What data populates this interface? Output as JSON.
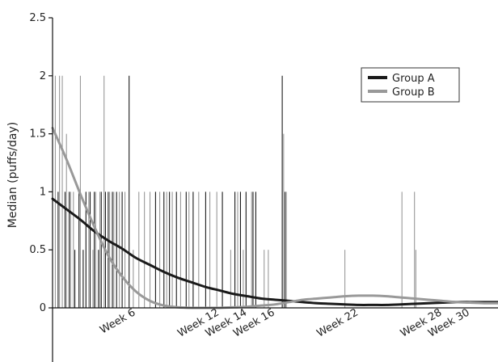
{
  "chart_data": {
    "type": "line",
    "title": "",
    "xlabel": "",
    "ylabel": "Median (puffs/day)",
    "xlim": [
      0,
      32
    ],
    "ylim": [
      0,
      2.5
    ],
    "y_ticks": [
      0,
      0.5,
      1,
      1.5,
      2,
      2.5
    ],
    "y_tick_labels": [
      "0",
      "0.5",
      "1",
      "1.5",
      "2",
      "2.5"
    ],
    "x_ticks": [
      {
        "value": 6,
        "label": "Week 6"
      },
      {
        "value": 12,
        "label": "Week 12"
      },
      {
        "value": 14,
        "label": "Week 14"
      },
      {
        "value": 16,
        "label": "Week 16"
      },
      {
        "value": 22,
        "label": "Week 22"
      },
      {
        "value": 28,
        "label": "Week 28"
      },
      {
        "value": 30,
        "label": "Week 30"
      }
    ],
    "x_tick_rotation_deg": -30,
    "grid": false,
    "legend_position": "top-right",
    "colors": {
      "Group A": "#1a1a1a",
      "Group B": "#999999"
    },
    "series": [
      {
        "name": "Group A",
        "kind": "spikes",
        "x": [
          0.4,
          0.9,
          1.2,
          1.6,
          1.9,
          2.2,
          2.4,
          2.7,
          3.0,
          3.3,
          3.5,
          3.8,
          4.0,
          4.3,
          4.6,
          5.0,
          5.5,
          7.4,
          8.0,
          8.4,
          8.9,
          9.6,
          10.1,
          11.0,
          12.2,
          13.1,
          13.5,
          13.9,
          14.4,
          14.6,
          16.5,
          16.7
        ],
        "y": [
          1,
          1,
          1,
          0.5,
          1,
          0.5,
          1,
          1,
          1,
          0.5,
          1,
          1,
          1,
          1,
          1,
          1,
          2,
          1,
          1,
          1,
          1,
          1,
          1,
          1,
          1,
          1,
          1,
          1,
          1,
          1,
          2,
          1
        ]
      },
      {
        "name": "Group B",
        "kind": "spikes",
        "x": [
          0.2,
          0.5,
          0.7,
          1.0,
          1.3,
          1.5,
          2.0,
          2.6,
          2.9,
          3.1,
          3.4,
          3.7,
          4.1,
          4.4,
          4.8,
          5.2,
          5.8,
          6.2,
          6.6,
          7.0,
          7.7,
          8.2,
          8.6,
          9.2,
          9.8,
          10.5,
          11.3,
          11.8,
          12.8,
          13.3,
          13.7,
          14.3,
          15.2,
          15.5,
          16.6,
          16.8,
          21.0,
          25.1,
          26.0,
          26.1
        ],
        "y": [
          2,
          2,
          2,
          1.5,
          1,
          1,
          2,
          1,
          0.5,
          1,
          1,
          2,
          1,
          1,
          1,
          1,
          0.5,
          1,
          1,
          1,
          1,
          1,
          1,
          1,
          1,
          1,
          1,
          1,
          0.5,
          1,
          0.5,
          1,
          0.5,
          0.5,
          1.5,
          1,
          0.5,
          1,
          1,
          0.5
        ]
      },
      {
        "name": "Group A",
        "kind": "smooth",
        "x": [
          0,
          1,
          2,
          3,
          4,
          5,
          6,
          7,
          8,
          9,
          10,
          11,
          12,
          13,
          14,
          15,
          16,
          17,
          18,
          19,
          20,
          21,
          22,
          23,
          24,
          25,
          26,
          27,
          28,
          29,
          30,
          31,
          32
        ],
        "y": [
          0.94,
          0.85,
          0.76,
          0.66,
          0.58,
          0.51,
          0.43,
          0.37,
          0.31,
          0.26,
          0.22,
          0.18,
          0.15,
          0.12,
          0.1,
          0.08,
          0.07,
          0.06,
          0.05,
          0.04,
          0.035,
          0.03,
          0.025,
          0.025,
          0.025,
          0.03,
          0.035,
          0.04,
          0.045,
          0.05,
          0.05,
          0.05,
          0.05
        ]
      },
      {
        "name": "Group B",
        "kind": "smooth",
        "x": [
          0,
          1,
          2,
          3,
          4,
          5,
          6,
          7,
          8,
          9,
          10,
          11,
          12,
          13,
          14,
          15,
          16,
          17,
          18,
          19,
          20,
          21,
          22,
          23,
          24,
          25,
          26,
          27,
          28,
          29,
          30,
          31,
          32
        ],
        "y": [
          1.55,
          1.28,
          0.98,
          0.7,
          0.45,
          0.27,
          0.14,
          0.06,
          0.02,
          0.005,
          0,
          0,
          0,
          0.005,
          0.01,
          0.02,
          0.03,
          0.05,
          0.07,
          0.08,
          0.09,
          0.1,
          0.105,
          0.105,
          0.1,
          0.09,
          0.08,
          0.07,
          0.06,
          0.05,
          0.045,
          0.04,
          0.04
        ]
      }
    ]
  }
}
